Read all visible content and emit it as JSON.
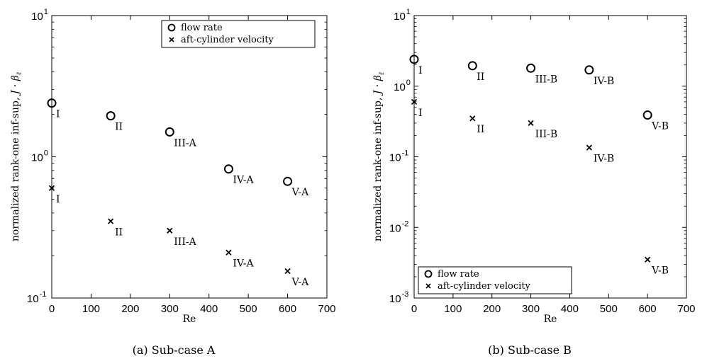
{
  "chart_data": [
    {
      "type": "scatter",
      "caption": "(a) Sub-case A",
      "xlabel": "Re",
      "ylabel": "normalized rank-one inf-sup, J · β_ℓ",
      "ylabel_main": "normalized rank-one inf-sup, ",
      "ylabel_math": "J · β",
      "ylabel_sub": "ℓ",
      "yscale": "log",
      "xlim": [
        0,
        700
      ],
      "ylim": [
        0.1,
        10
      ],
      "xticks": [
        0,
        100,
        200,
        300,
        400,
        500,
        600,
        700
      ],
      "yticks": [
        {
          "base": "10",
          "exp": "-1",
          "value": 0.1
        },
        {
          "base": "10",
          "exp": "0",
          "value": 1
        },
        {
          "base": "10",
          "exp": "1",
          "value": 10
        }
      ],
      "legend_position": "top-right",
      "series": [
        {
          "name": "flow rate",
          "marker": "circle",
          "x": [
            0,
            150,
            300,
            450,
            600
          ],
          "y": [
            2.4,
            1.95,
            1.5,
            0.82,
            0.67
          ],
          "labels": [
            "I",
            "II",
            "III-A",
            "IV-A",
            "V-A"
          ]
        },
        {
          "name": "aft-cylinder velocity",
          "marker": "x",
          "x": [
            0,
            150,
            300,
            450,
            600
          ],
          "y": [
            0.6,
            0.35,
            0.3,
            0.21,
            0.155
          ],
          "labels": [
            "I",
            "II",
            "III-A",
            "IV-A",
            "V-A"
          ]
        }
      ]
    },
    {
      "type": "scatter",
      "caption": "(b) Sub-case B",
      "xlabel": "Re",
      "ylabel": "normalized rank-one inf-sup, J · β_ℓ",
      "ylabel_main": "normalized rank-one inf-sup, ",
      "ylabel_math": "J · β",
      "ylabel_sub": "ℓ",
      "yscale": "log",
      "xlim": [
        0,
        700
      ],
      "ylim": [
        0.001,
        10
      ],
      "xticks": [
        0,
        100,
        200,
        300,
        400,
        500,
        600,
        700
      ],
      "yticks": [
        {
          "base": "10",
          "exp": "-3",
          "value": 0.001
        },
        {
          "base": "10",
          "exp": "-2",
          "value": 0.01
        },
        {
          "base": "10",
          "exp": "-1",
          "value": 0.1
        },
        {
          "base": "10",
          "exp": "0",
          "value": 1
        },
        {
          "base": "10",
          "exp": "1",
          "value": 10
        }
      ],
      "legend_position": "bottom-left",
      "series": [
        {
          "name": "flow rate",
          "marker": "circle",
          "x": [
            0,
            150,
            300,
            450,
            600
          ],
          "y": [
            2.4,
            1.95,
            1.8,
            1.7,
            0.39
          ],
          "labels": [
            "I",
            "II",
            "III-B",
            "IV-B",
            "V-B"
          ]
        },
        {
          "name": "aft-cylinder velocity",
          "marker": "x",
          "x": [
            0,
            150,
            300,
            450,
            600
          ],
          "y": [
            0.6,
            0.35,
            0.3,
            0.135,
            0.0035
          ],
          "labels": [
            "I",
            "II",
            "III-B",
            "IV-B",
            "V-B"
          ]
        }
      ]
    }
  ]
}
